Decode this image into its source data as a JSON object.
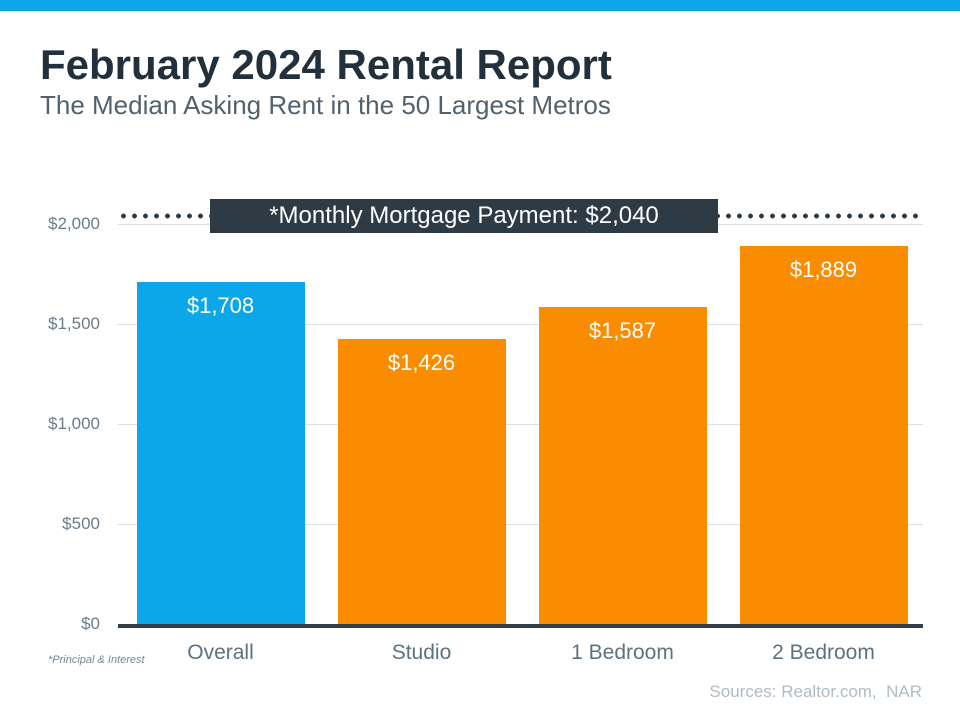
{
  "header": {
    "title": "February 2024 Rental Report",
    "subtitle": "The Median Asking Rent in the 50 Largest Metros"
  },
  "chart_data": {
    "type": "bar",
    "categories": [
      "Overall",
      "Studio",
      "1 Bedroom",
      "2 Bedroom"
    ],
    "values": [
      1708,
      1426,
      1587,
      1889
    ],
    "bar_labels": [
      "$1,708",
      "$1,426",
      "$1,587",
      "$1,889"
    ],
    "bar_colors": [
      "#0BA7E9",
      "#F98C00",
      "#F98C00",
      "#F98C00"
    ],
    "title": "",
    "xlabel": "",
    "ylabel": "",
    "ylim": [
      0,
      2100
    ],
    "yticks": [
      {
        "value": 0,
        "label": "$0"
      },
      {
        "value": 500,
        "label": "$500"
      },
      {
        "value": 1000,
        "label": "$1,000"
      },
      {
        "value": 1500,
        "label": "$1,500"
      },
      {
        "value": 2000,
        "label": "$2,000"
      }
    ],
    "grid": true,
    "legend": false,
    "reference_line": {
      "value": 2040,
      "label": "*Monthly Mortgage Payment: $2,040",
      "style": "dotted",
      "color": "#2E3A44"
    }
  },
  "footnotes": {
    "principal": "*Principal & Interest",
    "sources": "Sources: Realtor.com,  NAR"
  },
  "colors": {
    "accent_bar": "#0BA7E9",
    "title_text": "#22303B",
    "subtitle_text": "#51626E",
    "axis_text": "#6B7C8A",
    "gridline": "#DCDFE2",
    "baseline": "#333E48",
    "callout_background": "#2E3A44",
    "bar_value_text": "#FFFFFF"
  }
}
